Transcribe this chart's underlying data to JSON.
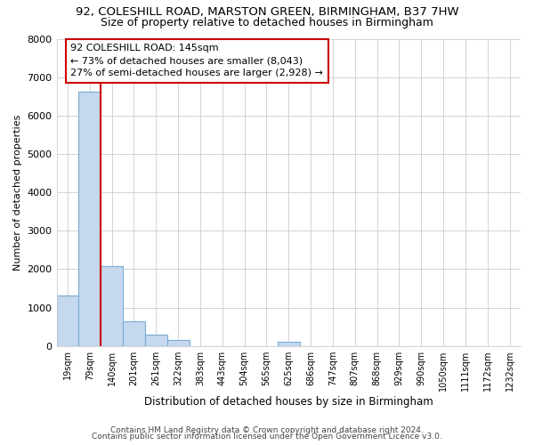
{
  "title1": "92, COLESHILL ROAD, MARSTON GREEN, BIRMINGHAM, B37 7HW",
  "title2": "Size of property relative to detached houses in Birmingham",
  "xlabel": "Distribution of detached houses by size in Birmingham",
  "ylabel": "Number of detached properties",
  "bar_color": "#c5d8ee",
  "bar_edge_color": "#7aacd4",
  "categories": [
    "19sqm",
    "79sqm",
    "140sqm",
    "201sqm",
    "261sqm",
    "322sqm",
    "383sqm",
    "443sqm",
    "504sqm",
    "565sqm",
    "625sqm",
    "686sqm",
    "747sqm",
    "807sqm",
    "868sqm",
    "929sqm",
    "990sqm",
    "1050sqm",
    "1111sqm",
    "1172sqm",
    "1232sqm"
  ],
  "values": [
    1320,
    6620,
    2080,
    650,
    300,
    150,
    0,
    0,
    0,
    0,
    100,
    0,
    0,
    0,
    0,
    0,
    0,
    0,
    0,
    0,
    0
  ],
  "ylim": [
    0,
    8000
  ],
  "yticks": [
    0,
    1000,
    2000,
    3000,
    4000,
    5000,
    6000,
    7000,
    8000
  ],
  "property_line_color": "#cc0000",
  "property_line_bar_index": 1,
  "annotation_text": "92 COLESHILL ROAD: 145sqm\n← 73% of detached houses are smaller (8,043)\n27% of semi-detached houses are larger (2,928) →",
  "annotation_box_color": "#cc0000",
  "footer1": "Contains HM Land Registry data © Crown copyright and database right 2024.",
  "footer2": "Contains public sector information licensed under the Open Government Licence v3.0.",
  "grid_color": "#cccccc",
  "background_color": "#ffffff"
}
